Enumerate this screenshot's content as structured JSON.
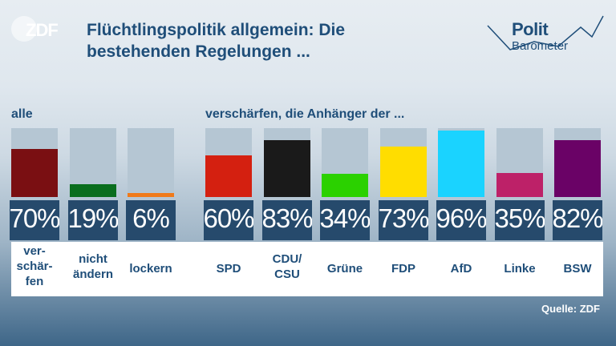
{
  "header": {
    "logo_text": "ZDF",
    "title": "Flüchtlingspolitik allgemein: Die bestehenden Regelungen ...",
    "brand_word1": "Polit",
    "brand_word2": "Barometer"
  },
  "chart_data": {
    "type": "bar",
    "title": "Flüchtlingspolitik allgemein: Die bestehenden Regelungen ...",
    "groups": [
      {
        "label": "alle",
        "categories": [
          "ver-\nschär-\nfen",
          "nicht\nändern",
          "lockern"
        ],
        "values": [
          70,
          19,
          6
        ],
        "value_labels": [
          "70%",
          "19%",
          "6%"
        ],
        "colors": [
          "#7a0f12",
          "#0a6e1e",
          "#f07a1a"
        ]
      },
      {
        "label": "verschärfen, die Anhänger der ...",
        "categories": [
          "SPD",
          "CDU/\nCSU",
          "Grüne",
          "FDP",
          "AfD",
          "Linke",
          "BSW"
        ],
        "values": [
          60,
          83,
          34,
          73,
          96,
          35,
          82
        ],
        "value_labels": [
          "60%",
          "83%",
          "34%",
          "73%",
          "96%",
          "35%",
          "82%"
        ],
        "colors": [
          "#d42010",
          "#1a1a1a",
          "#2bd100",
          "#ffdd00",
          "#1ad3ff",
          "#bd2168",
          "#6a0266"
        ]
      }
    ],
    "ylim": [
      0,
      100
    ],
    "legend": "none"
  },
  "footer": {
    "source": "Quelle: ZDF"
  }
}
